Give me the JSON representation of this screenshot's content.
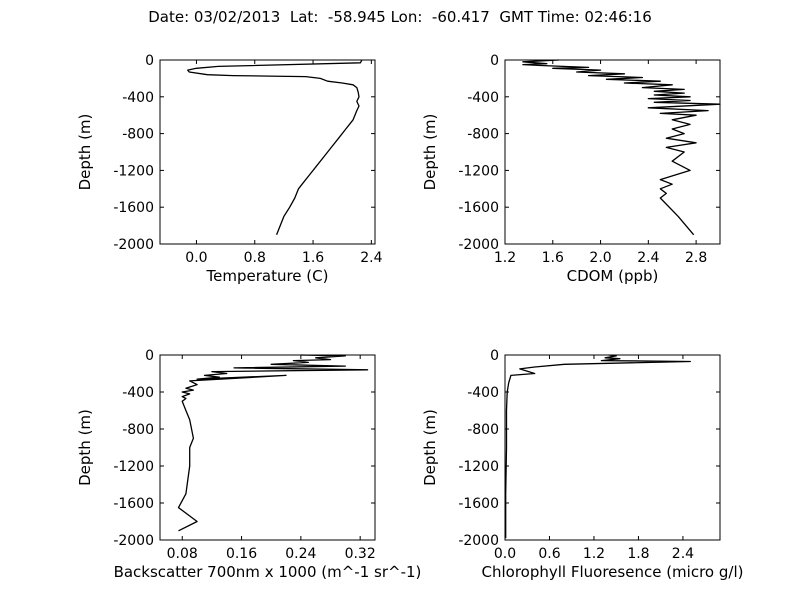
{
  "figure": {
    "title": "Date: 03/02/2013  Lat:  -58.945 Lon:  -60.417  GMT Time: 02:46:16"
  },
  "chart_data": [
    {
      "type": "line",
      "id": "temperature",
      "xlabel": "Temperature (C)",
      "ylabel": "Depth (m)",
      "xlim": [
        -0.5,
        2.45
      ],
      "ylim": [
        -2000,
        0
      ],
      "xticks": [
        "0.0",
        "0.8",
        "1.6",
        "2.4"
      ],
      "xtick_values": [
        0.0,
        0.8,
        1.6,
        2.4
      ],
      "yticks": [
        "0",
        "-400",
        "-800",
        "-1200",
        "-1600",
        "-2000"
      ],
      "ytick_values": [
        0,
        -400,
        -800,
        -1200,
        -1600,
        -2000
      ],
      "grid": false,
      "x": [
        2.27,
        2.25,
        0.3,
        0.0,
        -0.12,
        -0.1,
        0.15,
        0.5,
        1.0,
        1.5,
        1.7,
        1.8,
        2.0,
        2.15,
        2.2,
        2.22,
        2.23,
        2.2,
        2.23,
        2.2,
        2.15,
        2.05,
        1.95,
        1.85,
        1.75,
        1.65,
        1.55,
        1.45,
        1.4,
        1.35,
        1.28,
        1.2,
        1.1
      ],
      "y": [
        0,
        -30,
        -70,
        -90,
        -110,
        -130,
        -160,
        -170,
        -175,
        -180,
        -200,
        -230,
        -250,
        -270,
        -300,
        -350,
        -400,
        -450,
        -500,
        -550,
        -650,
        -750,
        -850,
        -950,
        -1050,
        -1150,
        -1250,
        -1350,
        -1400,
        -1500,
        -1600,
        -1700,
        -1900
      ]
    },
    {
      "type": "line",
      "id": "cdom",
      "xlabel": "CDOM (ppb)",
      "ylabel": "Depth (m)",
      "xlim": [
        1.2,
        3.0
      ],
      "ylim": [
        -2000,
        0
      ],
      "xticks": [
        "1.2",
        "1.6",
        "2.0",
        "2.4",
        "2.8"
      ],
      "xtick_values": [
        1.2,
        1.6,
        2.0,
        2.4,
        2.8
      ],
      "yticks": [
        "0",
        "-400",
        "-800",
        "-1200",
        "-1600",
        "-2000"
      ],
      "ytick_values": [
        0,
        -400,
        -800,
        -1200,
        -1600,
        -2000
      ],
      "grid": false,
      "x": [
        1.65,
        1.35,
        1.55,
        1.35,
        1.5,
        1.9,
        1.6,
        2.0,
        1.8,
        2.2,
        1.9,
        2.35,
        2.05,
        2.5,
        2.2,
        2.6,
        2.35,
        2.7,
        2.45,
        2.7,
        2.45,
        2.75,
        2.4,
        2.75,
        2.45,
        3.0,
        2.4,
        2.9,
        2.5,
        2.8,
        2.6,
        2.75,
        2.6,
        2.7,
        2.55,
        2.8,
        2.55,
        2.7,
        2.6,
        2.75,
        2.5,
        2.6,
        2.5,
        2.55,
        2.5,
        2.65,
        2.78
      ],
      "y": [
        0,
        -20,
        -40,
        -50,
        -60,
        -80,
        -90,
        -110,
        -130,
        -150,
        -170,
        -190,
        -210,
        -230,
        -250,
        -270,
        -300,
        -320,
        -340,
        -360,
        -380,
        -400,
        -420,
        -440,
        -460,
        -480,
        -520,
        -550,
        -580,
        -600,
        -650,
        -700,
        -750,
        -800,
        -850,
        -900,
        -950,
        -1000,
        -1100,
        -1200,
        -1300,
        -1350,
        -1400,
        -1450,
        -1500,
        -1700,
        -1900
      ]
    },
    {
      "type": "line",
      "id": "backscatter",
      "xlabel": "Backscatter 700nm x 1000 (m^-1 sr^-1)",
      "ylabel": "Depth (m)",
      "xlim": [
        0.05,
        0.34
      ],
      "ylim": [
        -2000,
        0
      ],
      "xticks": [
        "0.08",
        "0.16",
        "0.24",
        "0.32"
      ],
      "xtick_values": [
        0.08,
        0.16,
        0.24,
        0.32
      ],
      "yticks": [
        "0",
        "-400",
        "-800",
        "-1200",
        "-1600",
        "-2000"
      ],
      "ytick_values": [
        0,
        -400,
        -800,
        -1200,
        -1600,
        -2000
      ],
      "grid": false,
      "x": [
        0.24,
        0.3,
        0.26,
        0.28,
        0.23,
        0.25,
        0.2,
        0.3,
        0.15,
        0.33,
        0.12,
        0.14,
        0.11,
        0.13,
        0.1,
        0.22,
        0.09,
        0.1,
        0.085,
        0.095,
        0.08,
        0.09,
        0.08,
        0.085,
        0.08,
        0.085,
        0.09,
        0.095,
        0.09,
        0.09,
        0.085,
        0.075,
        0.1,
        0.075
      ],
      "y": [
        0,
        -10,
        -30,
        -50,
        -60,
        -80,
        -100,
        -120,
        -140,
        -160,
        -180,
        -200,
        -220,
        -240,
        -260,
        -220,
        -280,
        -320,
        -360,
        -380,
        -400,
        -420,
        -450,
        -470,
        -500,
        -600,
        -700,
        -900,
        -1000,
        -1200,
        -1500,
        -1650,
        -1800,
        -1900
      ]
    },
    {
      "type": "line",
      "id": "chlorophyll",
      "xlabel": "Chlorophyll Fluoresence (micro g/l)",
      "ylabel": "Depth (m)",
      "xlim": [
        0.0,
        2.9
      ],
      "ylim": [
        -2000,
        0
      ],
      "xticks": [
        "0.0",
        "0.6",
        "1.2",
        "1.8",
        "2.4"
      ],
      "xtick_values": [
        0.0,
        0.6,
        1.2,
        1.8,
        2.4
      ],
      "yticks": [
        "0",
        "-400",
        "-800",
        "-1200",
        "-1600",
        "-2000"
      ],
      "ytick_values": [
        0,
        -400,
        -800,
        -1200,
        -1600,
        -2000
      ],
      "grid": false,
      "x": [
        1.4,
        1.5,
        1.35,
        1.55,
        1.3,
        2.5,
        0.8,
        0.4,
        0.2,
        0.4,
        0.08,
        0.05,
        0.03,
        0.02,
        0.02,
        0.01,
        0.01,
        0.01
      ],
      "y": [
        0,
        -10,
        -30,
        -40,
        -60,
        -70,
        -100,
        -130,
        -150,
        -200,
        -220,
        -300,
        -400,
        -600,
        -1000,
        -1500,
        -1800,
        -1980
      ]
    }
  ]
}
